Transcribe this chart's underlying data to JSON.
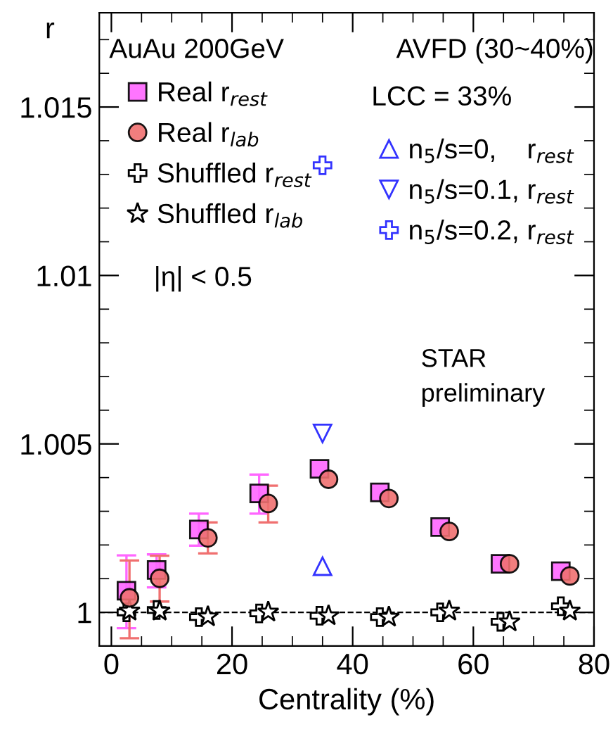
{
  "chart_data": {
    "type": "scatter",
    "xlabel": "Centrality (%)",
    "ylabel": "r",
    "xlim": [
      -2,
      80
    ],
    "ylim": [
      0.999,
      1.0178
    ],
    "xticks": [
      0,
      {
        "value": 5,
        "label": null
      },
      20,
      {
        "value": 10,
        "label": null
      },
      {
        "value": 15,
        "label": null
      },
      {
        "value": 25,
        "label": null
      },
      {
        "value": 30,
        "label": null
      },
      40,
      {
        "value": 35,
        "label": null
      },
      {
        "value": 45,
        "label": null
      },
      {
        "value": 50,
        "label": null
      },
      60,
      {
        "value": 55,
        "label": null
      },
      {
        "value": 65,
        "label": null
      },
      {
        "value": 70,
        "label": null
      },
      80,
      {
        "value": 75,
        "label": null
      }
    ],
    "yticks": [
      1,
      1.005,
      1.01,
      1.015,
      {
        "value": 0.999,
        "label": null
      },
      {
        "value": 1.001,
        "label": null
      },
      {
        "value": 1.002,
        "label": null
      },
      {
        "value": 1.003,
        "label": null
      },
      {
        "value": 1.004,
        "label": null
      },
      {
        "value": 1.006,
        "label": null
      },
      {
        "value": 1.007,
        "label": null
      },
      {
        "value": 1.008,
        "label": null
      },
      {
        "value": 1.009,
        "label": null
      },
      {
        "value": 1.011,
        "label": null
      },
      {
        "value": 1.012,
        "label": null
      },
      {
        "value": 1.013,
        "label": null
      },
      {
        "value": 1.014,
        "label": null
      },
      {
        "value": 1.016,
        "label": null
      },
      {
        "value": 1.017,
        "label": null
      }
    ],
    "grid": false,
    "legend": "top",
    "series": [
      {
        "name": "Real r$_{rest}$",
        "color": "#ff66ff",
        "marker": "square",
        "x": [
          2.5,
          7.5,
          14.5,
          24.5,
          34.5,
          44.5,
          54.5,
          64.5,
          74.5
        ],
        "values": [
          1.00064,
          1.00126,
          1.00246,
          1.00353,
          1.00426,
          1.00356,
          1.00253,
          1.00144,
          1.00122
        ],
        "errors": [
          [
            0.99953,
            1.00169
          ],
          [
            1.00074,
            1.00172
          ],
          [
            1.00198,
            1.00293
          ],
          [
            1.00293,
            1.00409
          ],
          null,
          null,
          null,
          null,
          null
        ]
      },
      {
        "name": "Real r$_{lab}$",
        "color": "#f07070",
        "marker": "circle",
        "x": [
          3,
          8,
          16,
          26,
          36,
          46,
          56,
          66,
          76
        ],
        "values": [
          1.00043,
          1.00101,
          1.00221,
          1.00323,
          1.00395,
          1.00338,
          1.0024,
          1.00144,
          1.00108
        ],
        "errors": [
          [
            0.99923,
            1.00154
          ],
          [
            1.00032,
            1.00168
          ],
          [
            1.00175,
            1.00267
          ],
          [
            1.00267,
            1.00376
          ],
          null,
          null,
          null,
          null,
          null
        ]
      },
      {
        "name": "Shuffled r$_{rest}$",
        "color": "#000000",
        "marker": "cross",
        "x": [
          2.5,
          7.5,
          14.5,
          24.5,
          34.5,
          44.5,
          54.5,
          64.5,
          74.5
        ],
        "values": [
          1.0,
          1.00007,
          0.99986,
          0.99997,
          0.9999,
          0.99986,
          1.0,
          0.99972,
          1.00018
        ]
      },
      {
        "name": "Shuffled r$_{lab}$",
        "color": "#000000",
        "marker": "star",
        "x": [
          3,
          8,
          16,
          26,
          36,
          46,
          56,
          66,
          76
        ],
        "values": [
          1.00004,
          1.00004,
          0.99987,
          1.00001,
          0.9999,
          0.99986,
          1.00004,
          0.99972,
          1.00004
        ]
      },
      {
        "name": "n$_{5}$/s=0,    r$_{rest}$",
        "color": "#3333ff",
        "marker": "triangle",
        "x": [
          35
        ],
        "values": [
          1.00137
        ]
      },
      {
        "name": "n$_{5}$/s=0.1, r$_{rest}$",
        "color": "#3333ff",
        "marker": "triangle_down",
        "x": [
          35
        ],
        "values": [
          1.00531
        ]
      },
      {
        "name": "n$_{5}$/s=0.2, r$_{rest}$",
        "color": "#3333ff",
        "marker": "cross",
        "x": [
          35
        ],
        "values": [
          1.01327
        ]
      }
    ],
    "ref_lines": [
      {
        "axis": "y",
        "value": 1,
        "color": "#000000",
        "line_style": "dashed"
      }
    ],
    "annotations": [
      "AuAu 200GeV",
      "AVFD (30~40%)",
      "LCC = 33%",
      "|η| < 0.5",
      "STAR\npreliminary"
    ]
  }
}
